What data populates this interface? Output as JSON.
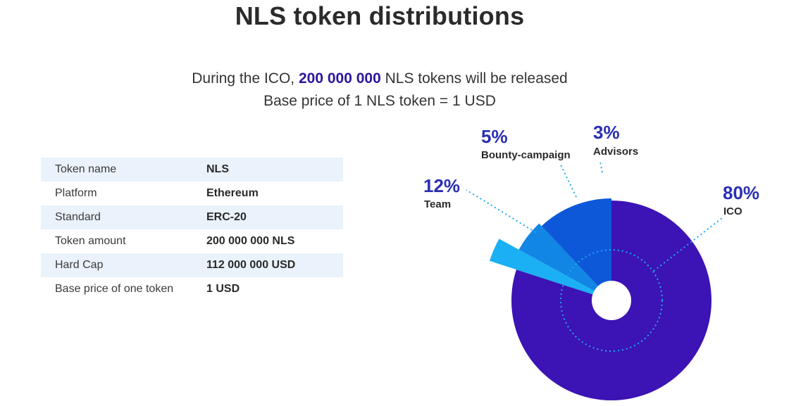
{
  "page": {
    "title": "NLS token distributions",
    "subtitle_pre": "During the ICO, ",
    "subtitle_amount": "200 000 000",
    "subtitle_post": " NLS tokens will be released",
    "subtitle_line2": "Base price of 1 NLS token = 1 USD"
  },
  "specs": [
    {
      "label": "Token name",
      "value": "NLS"
    },
    {
      "label": "Platform",
      "value": "Ethereum"
    },
    {
      "label": "Standard",
      "value": "ERC-20"
    },
    {
      "label": "Token amount",
      "value": "200 000 000 NLS"
    },
    {
      "label": "Hard Cap",
      "value": "112 000 000 USD"
    },
    {
      "label": "Base price of one token",
      "value": "1 USD"
    }
  ],
  "chart_data": {
    "type": "pie",
    "title": "",
    "slices": [
      {
        "name": "ICO",
        "value": 80,
        "label": "80%",
        "color": "#3c13b4"
      },
      {
        "name": "Advisors",
        "value": 3,
        "label": "3%",
        "color": "#1ab0f3"
      },
      {
        "name": "Bounty-campaign",
        "value": 5,
        "label": "5%",
        "color": "#1186e4"
      },
      {
        "name": "Team",
        "value": 12,
        "label": "12%",
        "color": "#0d58d8"
      }
    ]
  }
}
